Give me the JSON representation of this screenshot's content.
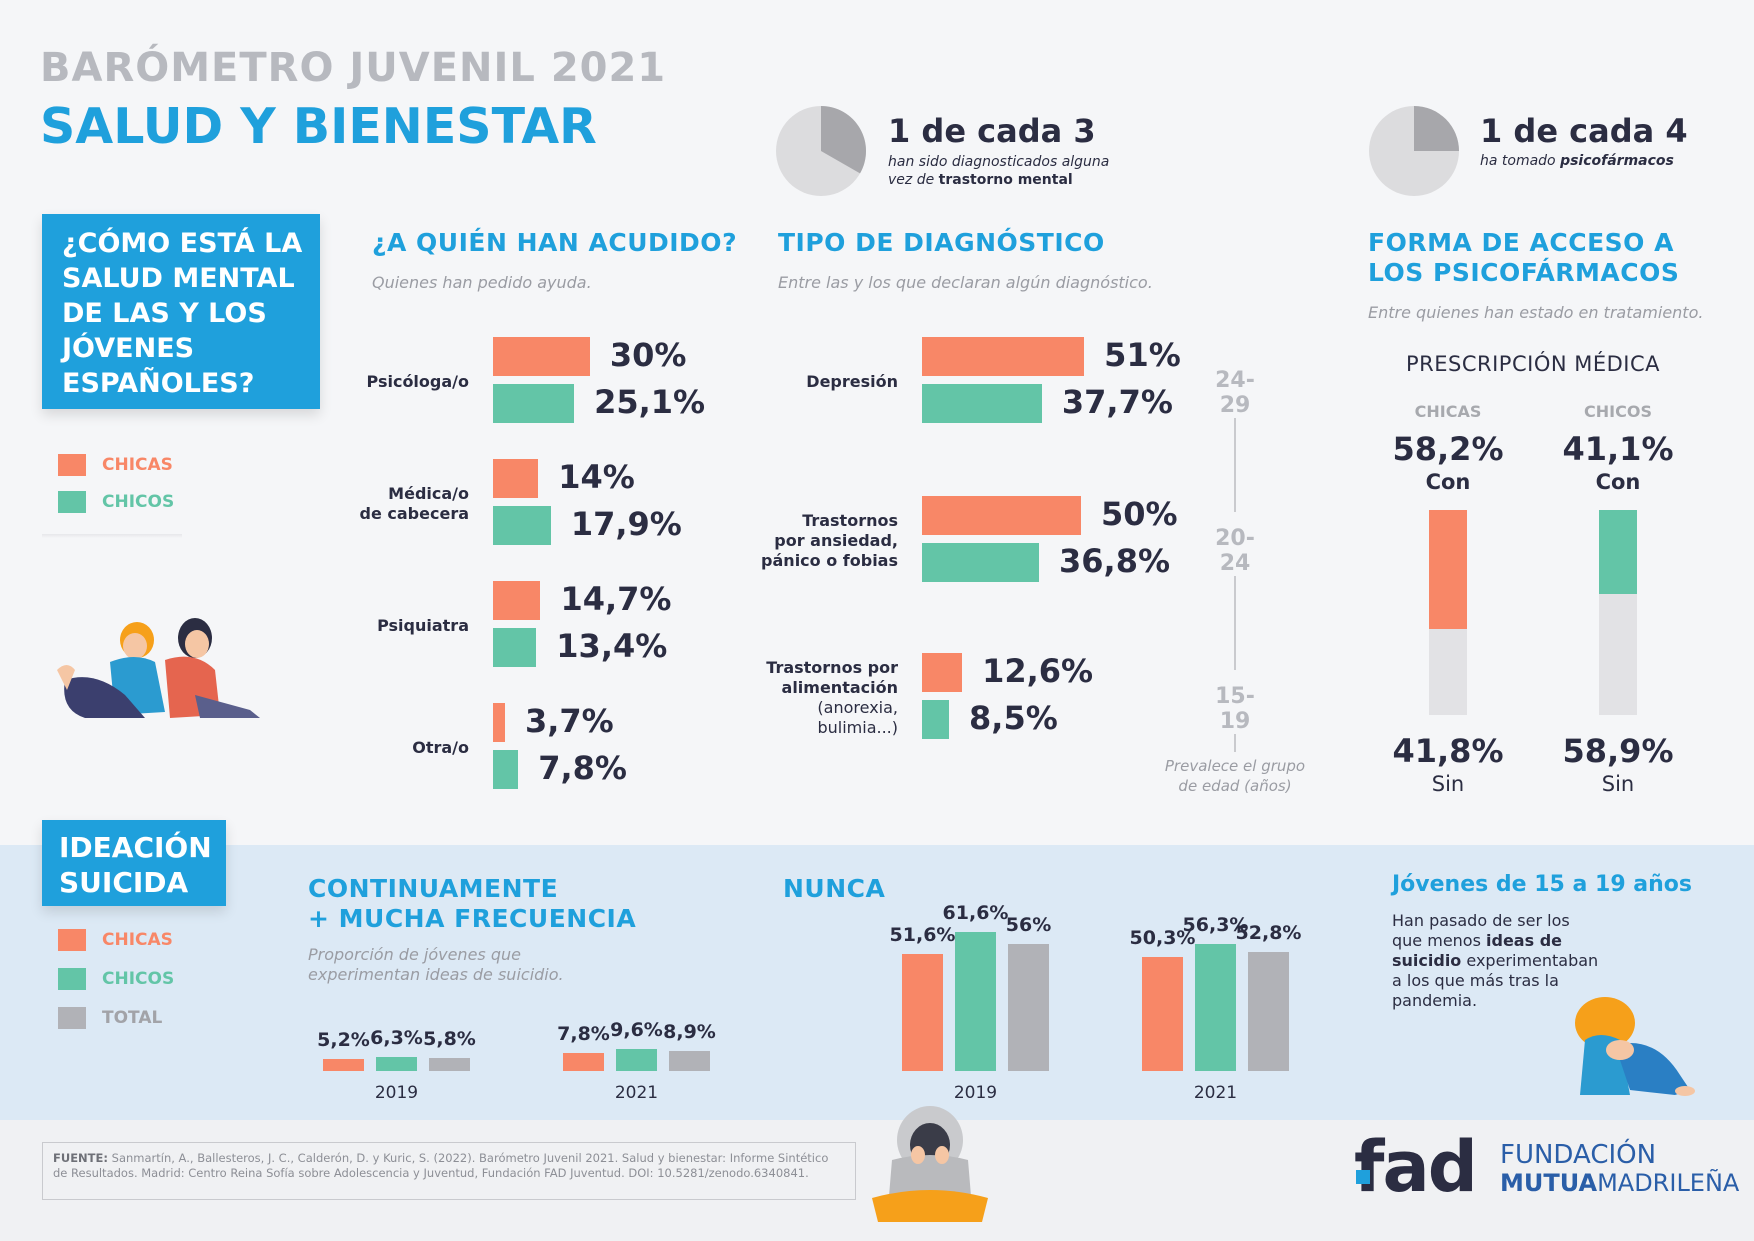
{
  "header": {
    "supertitle": "BARÓMETRO JUVENIL 2021",
    "title": "SALUD Y BIENESTAR"
  },
  "stat1": {
    "big": "1 de cada 3",
    "line1": "han sido diagnosticados alguna",
    "line2_pre": "vez de ",
    "line2_bold": "trastorno mental",
    "fraction": 0.333
  },
  "stat2": {
    "big": "1 de cada 4",
    "line1_pre": "ha tomado ",
    "line1_bold": "psicofármacos",
    "fraction": 0.25
  },
  "question_box": {
    "text": "¿CÓMO ESTÁ LA SALUD MENTAL DE LAS Y LOS JÓVENES ESPAÑOLES?"
  },
  "legend": {
    "chicas": "CHICAS",
    "chicos": "CHICOS",
    "total": "TOTAL"
  },
  "colors": {
    "chicas": "#f88767",
    "chicos": "#63c5a7",
    "total": "#b1b2b7",
    "accent": "#1fa0dc",
    "navy": "#2b2d42"
  },
  "section_quien": {
    "title": "¿A QUIÉN HAN ACUDIDO?",
    "subtitle": "Quienes han pedido ayuda."
  },
  "section_diag": {
    "title": "TIPO DE DIAGNÓSTICO",
    "subtitle": "Entre las y los que declaran algún diagnóstico."
  },
  "section_forma": {
    "title_l1": "FORMA DE ACCESO A",
    "title_l2": "LOS PSICOFÁRMACOS",
    "subtitle": "Entre quienes han estado en tratamiento.",
    "prescripcion": "PRESCRIPCIÓN MÉDICA"
  },
  "age_axis": {
    "a1": "24-29",
    "a2": "20-24",
    "a3": "15-19",
    "note_l1": "Prevalece el grupo",
    "note_l2": "de edad (años)"
  },
  "ideacion": {
    "box_l1": "IDEACIÓN",
    "box_l2": "SUICIDA",
    "cont_title_l1": "CONTINUAMENTE",
    "cont_title_l2": "+ MUCHA FRECUENCIA",
    "cont_sub_l1": "Proporción de jóvenes que",
    "cont_sub_l2": "experimentan ideas de suicidio.",
    "nunca_title": "NUNCA",
    "side_title": "Jóvenes de 15 a 19 años",
    "side_l1": "Han pasado de ser los",
    "side_l2_pre": "que menos ",
    "side_l2_bold": "ideas de",
    "side_l3_bold": "suicidio",
    "side_l3_post": " experimentaban",
    "side_l4": "a los que más tras la",
    "side_l5": "pandemia."
  },
  "footer": {
    "fuente_label": "FUENTE:",
    "fuente_l1": " Sanmartín, A., Ballesteros, J. C., Calderón, D. y Kuric, S. (2022). Barómetro Juvenil 2021. Salud y bienestar: Informe Sintético",
    "fuente_l2": "de Resultados. Madrid: Centro Reina Sofía sobre Adolescencia y Juventud, Fundación FAD Juventud. DOI: 10.5281/zenodo.6340841.",
    "logo_fad": "fad",
    "logo_fund_l1": "FUNDACIÓN",
    "logo_fund_l2a": "MUTUA",
    "logo_fund_l2b": "MADRILEÑA"
  },
  "chart_data": [
    {
      "type": "bar",
      "title": "¿A QUIÉN HAN ACUDIDO?",
      "categories": [
        "Psicóloga/o",
        "Médica/o de cabecera",
        "Psiquiatra",
        "Otra/o"
      ],
      "series": [
        {
          "name": "CHICAS",
          "values": [
            30,
            14,
            14.7,
            3.7
          ],
          "labels": [
            "30%",
            "14%",
            "14,7%",
            "3,7%"
          ]
        },
        {
          "name": "CHICOS",
          "values": [
            25.1,
            17.9,
            13.4,
            7.8
          ],
          "labels": [
            "25,1%",
            "17,9%",
            "13,4%",
            "7,8%"
          ]
        }
      ]
    },
    {
      "type": "bar",
      "title": "TIPO DE DIAGNÓSTICO",
      "categories": [
        "Depresión",
        "Trastornos por ansiedad, pánico o fobias",
        "Trastornos por alimentación (anorexia, bulimia...)"
      ],
      "category_lines": [
        [
          "Depresión"
        ],
        [
          "Trastornos",
          "por ansiedad,",
          "pánico o fobias"
        ],
        [
          "Trastornos por",
          "alimentación",
          "(anorexia,",
          "bulimia...)"
        ]
      ],
      "category_bold": [
        [
          true
        ],
        [
          true,
          true,
          true
        ],
        [
          true,
          true,
          false,
          false
        ]
      ],
      "series": [
        {
          "name": "CHICAS",
          "values": [
            51,
            50,
            12.6
          ],
          "labels": [
            "51%",
            "50%",
            "12,6%"
          ]
        },
        {
          "name": "CHICOS",
          "values": [
            37.7,
            36.8,
            8.5
          ],
          "labels": [
            "37,7%",
            "36,8%",
            "8,5%"
          ]
        }
      ]
    },
    {
      "type": "bar",
      "title": "PRESCRIPCIÓN MÉDICA",
      "categories": [
        "CHICAS",
        "CHICOS"
      ],
      "series": [
        {
          "name": "Con",
          "values": [
            58.2,
            41.1
          ],
          "labels": [
            "58,2%",
            "41,1%"
          ]
        },
        {
          "name": "Sin",
          "values": [
            41.8,
            58.9
          ],
          "labels": [
            "41,8%",
            "58,9%"
          ]
        }
      ]
    },
    {
      "type": "bar",
      "title": "CONTINUAMENTE + MUCHA FRECUENCIA",
      "categories": [
        "2019",
        "2021"
      ],
      "series": [
        {
          "name": "CHICAS",
          "values": [
            5.2,
            7.8
          ],
          "labels": [
            "5,2%",
            "7,8%"
          ]
        },
        {
          "name": "CHICOS",
          "values": [
            6.3,
            9.6
          ],
          "labels": [
            "6,3%",
            "9,6%"
          ]
        },
        {
          "name": "TOTAL",
          "values": [
            5.8,
            8.9
          ],
          "labels": [
            "5,8%",
            "8,9%"
          ]
        }
      ]
    },
    {
      "type": "bar",
      "title": "NUNCA",
      "categories": [
        "2019",
        "2021"
      ],
      "series": [
        {
          "name": "CHICAS",
          "values": [
            51.6,
            50.3
          ],
          "labels": [
            "51,6%",
            "50,3%"
          ]
        },
        {
          "name": "CHICOS",
          "values": [
            61.6,
            56.3
          ],
          "labels": [
            "61,6%",
            "56,3%"
          ]
        },
        {
          "name": "TOTAL",
          "values": [
            56,
            52.8
          ],
          "labels": [
            "56%",
            "52,8%"
          ]
        }
      ]
    }
  ]
}
